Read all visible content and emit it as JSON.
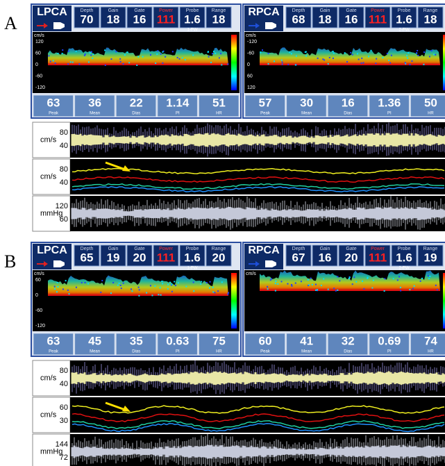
{
  "panels": [
    {
      "label": "A",
      "probes": [
        {
          "name": "LPCA",
          "mode": "1-PW",
          "unit": "cm/s",
          "fields": [
            {
              "label": "Depth",
              "value": "70"
            },
            {
              "label": "Gain",
              "value": "18"
            },
            {
              "label": "Gate",
              "value": "16"
            },
            {
              "label": "Power",
              "value": "111"
            },
            {
              "label": "Probe",
              "value": "1.6"
            },
            {
              "label": "Range",
              "value": "18"
            }
          ],
          "scale": [
            "120",
            "60",
            "0",
            "-60",
            "-120"
          ],
          "stats": [
            {
              "value": "63",
              "label": "Peak"
            },
            {
              "value": "36",
              "label": "Mean"
            },
            {
              "value": "22",
              "label": "Dias"
            },
            {
              "value": "1.14",
              "label": "PI"
            },
            {
              "value": "51",
              "label": "HR"
            }
          ]
        },
        {
          "name": "RPCA",
          "mode": "2-PW",
          "unit": "cm/s",
          "fields": [
            {
              "label": "Depth",
              "value": "68"
            },
            {
              "label": "Gain",
              "value": "18"
            },
            {
              "label": "Gate",
              "value": "16"
            },
            {
              "label": "Power",
              "value": "111"
            },
            {
              "label": "Probe",
              "value": "1.6"
            },
            {
              "label": "Range",
              "value": "18"
            }
          ],
          "scale": [
            "-120",
            "-60",
            "0",
            "60",
            "120"
          ],
          "stats": [
            {
              "value": "57",
              "label": "Peak"
            },
            {
              "value": "30",
              "label": "Mean"
            },
            {
              "value": "16",
              "label": "Dias"
            },
            {
              "value": "1.36",
              "label": "PI"
            },
            {
              "value": "50",
              "label": "HR"
            }
          ]
        }
      ],
      "traces": [
        {
          "unit": "cm/s",
          "ticks": [
            "80",
            "40"
          ]
        },
        {
          "unit": "cm/s",
          "ticks": [
            "80",
            "40"
          ]
        },
        {
          "unit": "mmHg",
          "ticks": [
            "120",
            "60"
          ]
        }
      ]
    },
    {
      "label": "B",
      "probes": [
        {
          "name": "LPCA",
          "mode": "1-PW",
          "unit": "cm/s",
          "fields": [
            {
              "label": "Depth",
              "value": "65"
            },
            {
              "label": "Gain",
              "value": "19"
            },
            {
              "label": "Gate",
              "value": "20"
            },
            {
              "label": "Power",
              "value": "111"
            },
            {
              "label": "Probe",
              "value": "1.6"
            },
            {
              "label": "Range",
              "value": "20"
            }
          ],
          "scale": [
            "60",
            "0",
            "-60",
            "-120"
          ],
          "stats": [
            {
              "value": "63",
              "label": "Peak"
            },
            {
              "value": "45",
              "label": "Mean"
            },
            {
              "value": "35",
              "label": "Dias"
            },
            {
              "value": "0.63",
              "label": "PI"
            },
            {
              "value": "75",
              "label": "HR"
            }
          ]
        },
        {
          "name": "RPCA",
          "mode": "2-PW",
          "unit": "cm/s",
          "fields": [
            {
              "label": "Depth",
              "value": "67"
            },
            {
              "label": "Gain",
              "value": "16"
            },
            {
              "label": "Gate",
              "value": "20"
            },
            {
              "label": "Power",
              "value": "111"
            },
            {
              "label": "Probe",
              "value": "1.6"
            },
            {
              "label": "Range",
              "value": "19"
            }
          ],
          "stats": [
            {
              "value": "60",
              "label": "Peak"
            },
            {
              "value": "41",
              "label": "Mean"
            },
            {
              "value": "32",
              "label": "Dias"
            },
            {
              "value": "0.69",
              "label": "PI"
            },
            {
              "value": "74",
              "label": "HR"
            }
          ]
        }
      ],
      "traces": [
        {
          "unit": "cm/s",
          "ticks": [
            "80",
            "40"
          ]
        },
        {
          "unit": "cm/s",
          "ticks": [
            "60",
            "30"
          ]
        },
        {
          "unit": "mmHg",
          "ticks": [
            "144",
            "72"
          ]
        }
      ]
    }
  ]
}
